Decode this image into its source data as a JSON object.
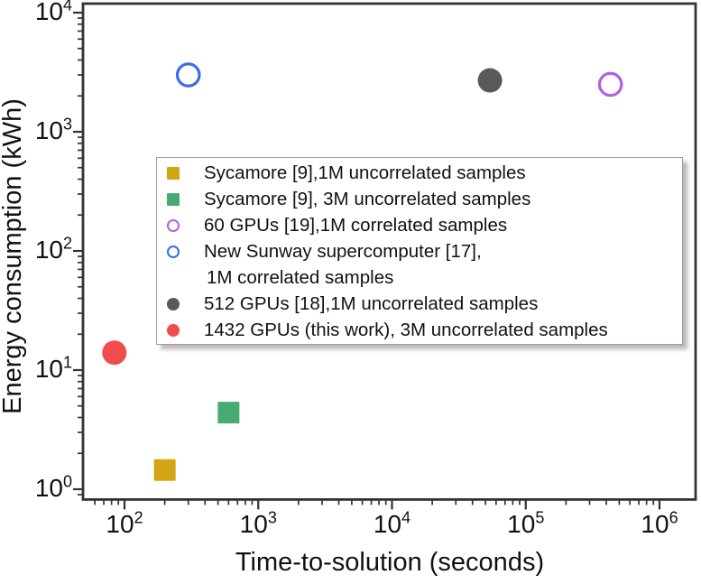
{
  "chart_data": {
    "type": "scatter",
    "title": "",
    "xlabel": "Time-to-solution (seconds)",
    "ylabel": "Energy consumption (kWh)",
    "x_scale": "log",
    "y_scale": "log",
    "xlim": [
      50,
      1860000
    ],
    "ylim": [
      0.83,
      11900
    ],
    "grid": false,
    "legend_position": "center-right",
    "x_ticks": {
      "base": "10",
      "exponents": [
        2,
        3,
        4,
        5,
        6
      ]
    },
    "y_ticks": {
      "base": "10",
      "exponents": [
        0,
        1,
        2,
        3,
        4
      ]
    },
    "axis_color": "#333333",
    "series": [
      {
        "key": "sycamore-1m",
        "legend_label": "Sycamore [9],1M uncorrelated samples",
        "marker": "square-filled",
        "color": "#D2A517",
        "x": 200,
        "y": 1.45
      },
      {
        "key": "sycamore-3m",
        "legend_label": "Sycamore [9], 3M uncorrelated samples",
        "marker": "square-filled",
        "color": "#47AA73",
        "x": 600,
        "y": 4.4
      },
      {
        "key": "60-gpus",
        "legend_label": "60 GPUs [19],1M correlated samples",
        "marker": "circle-open",
        "color": "#B360E2",
        "x": 430000,
        "y": 2500
      },
      {
        "key": "new-sunway",
        "legend_label": "New Sunway supercomputer [17],",
        "legend_label2": "1M correlated samples",
        "marker": "circle-open",
        "color": "#3B6BE8",
        "x": 300,
        "y": 3000
      },
      {
        "key": "512-gpus",
        "legend_label": "512 GPUs [18],1M uncorrelated samples",
        "marker": "circle-filled",
        "color": "#595959",
        "x": 54000,
        "y": 2700
      },
      {
        "key": "1432-gpus",
        "legend_label": "1432 GPUs (this work), 3M uncorrelated samples",
        "marker": "circle-filled",
        "color": "#F24B4B",
        "x": 84,
        "y": 14
      }
    ]
  }
}
